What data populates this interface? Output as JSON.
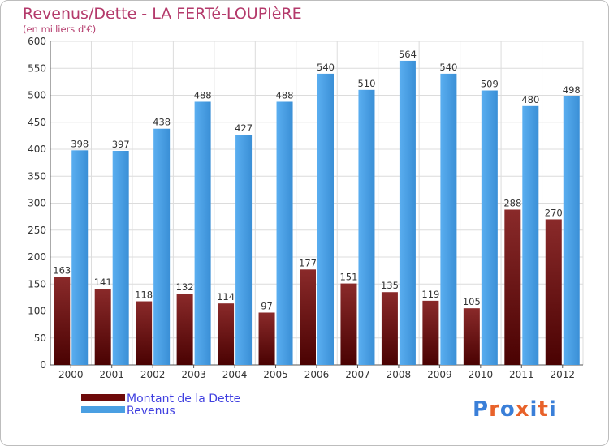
{
  "title": "Revenus/Dette - LA FERTé-LOUPIèRE",
  "subtitle": "(en milliers d'€)",
  "legend": [
    {
      "name": "Montant de la Dette",
      "color": "#6e0a0a"
    },
    {
      "name": "Revenus",
      "color": "#4a9fe2"
    }
  ],
  "logo": {
    "text": "Proxiti",
    "letter_colors": [
      "#3a7fd8",
      "#e8622a",
      "#3a7fd8",
      "#e8622a",
      "#3a7fd8",
      "#e8622a",
      "#3a7fd8"
    ]
  },
  "chart_data": {
    "type": "bar",
    "title": "Revenus/Dette - LA FERTé-LOUPIèRE",
    "subtitle": "(en milliers d'€)",
    "categories": [
      "2000",
      "2001",
      "2002",
      "2003",
      "2004",
      "2005",
      "2006",
      "2007",
      "2008",
      "2009",
      "2010",
      "2011",
      "2012"
    ],
    "series": [
      {
        "name": "Montant de la Dette",
        "color": "#6e0a0a",
        "values": [
          163,
          141,
          118,
          132,
          114,
          97,
          177,
          151,
          135,
          119,
          105,
          288,
          270
        ]
      },
      {
        "name": "Revenus",
        "color": "#4a9fe2",
        "values": [
          398,
          397,
          438,
          488,
          427,
          488,
          540,
          510,
          564,
          540,
          509,
          480,
          498
        ]
      }
    ],
    "ylim": [
      0,
      600
    ],
    "yticks": [
      0,
      50,
      100,
      150,
      200,
      250,
      300,
      350,
      400,
      450,
      500,
      550,
      600
    ],
    "grid": true,
    "legend_position": "bottom-left"
  }
}
